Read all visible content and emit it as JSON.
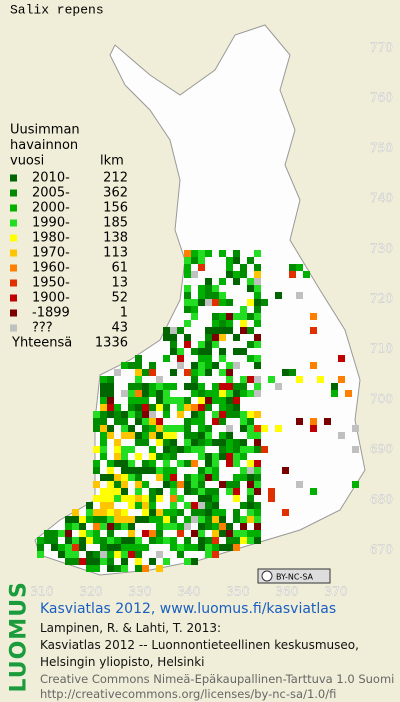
{
  "title": "Salix repens",
  "legend": {
    "heading": [
      "Uusimman",
      "havainnon",
      "vuosi"
    ],
    "count_heading": "lkm",
    "rows": [
      {
        "label": "2010-",
        "count": 212,
        "color": "#006400"
      },
      {
        "label": "2005-",
        "count": 362,
        "color": "#008a00"
      },
      {
        "label": "2000-",
        "count": 156,
        "color": "#00b000"
      },
      {
        "label": "1990-",
        "count": 185,
        "color": "#22dd22"
      },
      {
        "label": "1980-",
        "count": 138,
        "color": "#ffff00"
      },
      {
        "label": "1970-",
        "count": 113,
        "color": "#ffc400"
      },
      {
        "label": "1960-",
        "count": 61,
        "color": "#ff7f00"
      },
      {
        "label": "1950-",
        "count": 13,
        "color": "#e03000"
      },
      {
        "label": "1900-",
        "count": 52,
        "color": "#c00000"
      },
      {
        "label": "-1899",
        "count": 1,
        "color": "#7a0000"
      },
      {
        "label": "???",
        "count": 43,
        "color": "#c0c0c0"
      }
    ],
    "total_label": "Yhteensä",
    "total": 1336
  },
  "grid": {
    "x_labels": [
      310,
      320,
      330,
      340,
      350,
      360,
      370
    ],
    "y_labels": [
      770,
      760,
      750,
      740,
      730,
      720,
      710,
      700,
      690,
      680,
      670
    ]
  },
  "badge": "BY-NC-SA",
  "footer": {
    "logo": "LUOMUS",
    "link": "Kasviatlas 2012, www.luomus.fi/kasviatlas",
    "citation": [
      "Lampinen, R. & Lahti, T. 2013:",
      "Kasviatlas 2012 -- Luonnontieteellinen keskusmuseo,",
      "Helsingin yliopisto, Helsinki"
    ],
    "license": [
      "Creative Commons Nimeä-Epäkaupallinen-Tarttuva 1.0 Suomi",
      "http://creativecommons.org/licenses/by-nc-sa/1.0/fi"
    ]
  }
}
